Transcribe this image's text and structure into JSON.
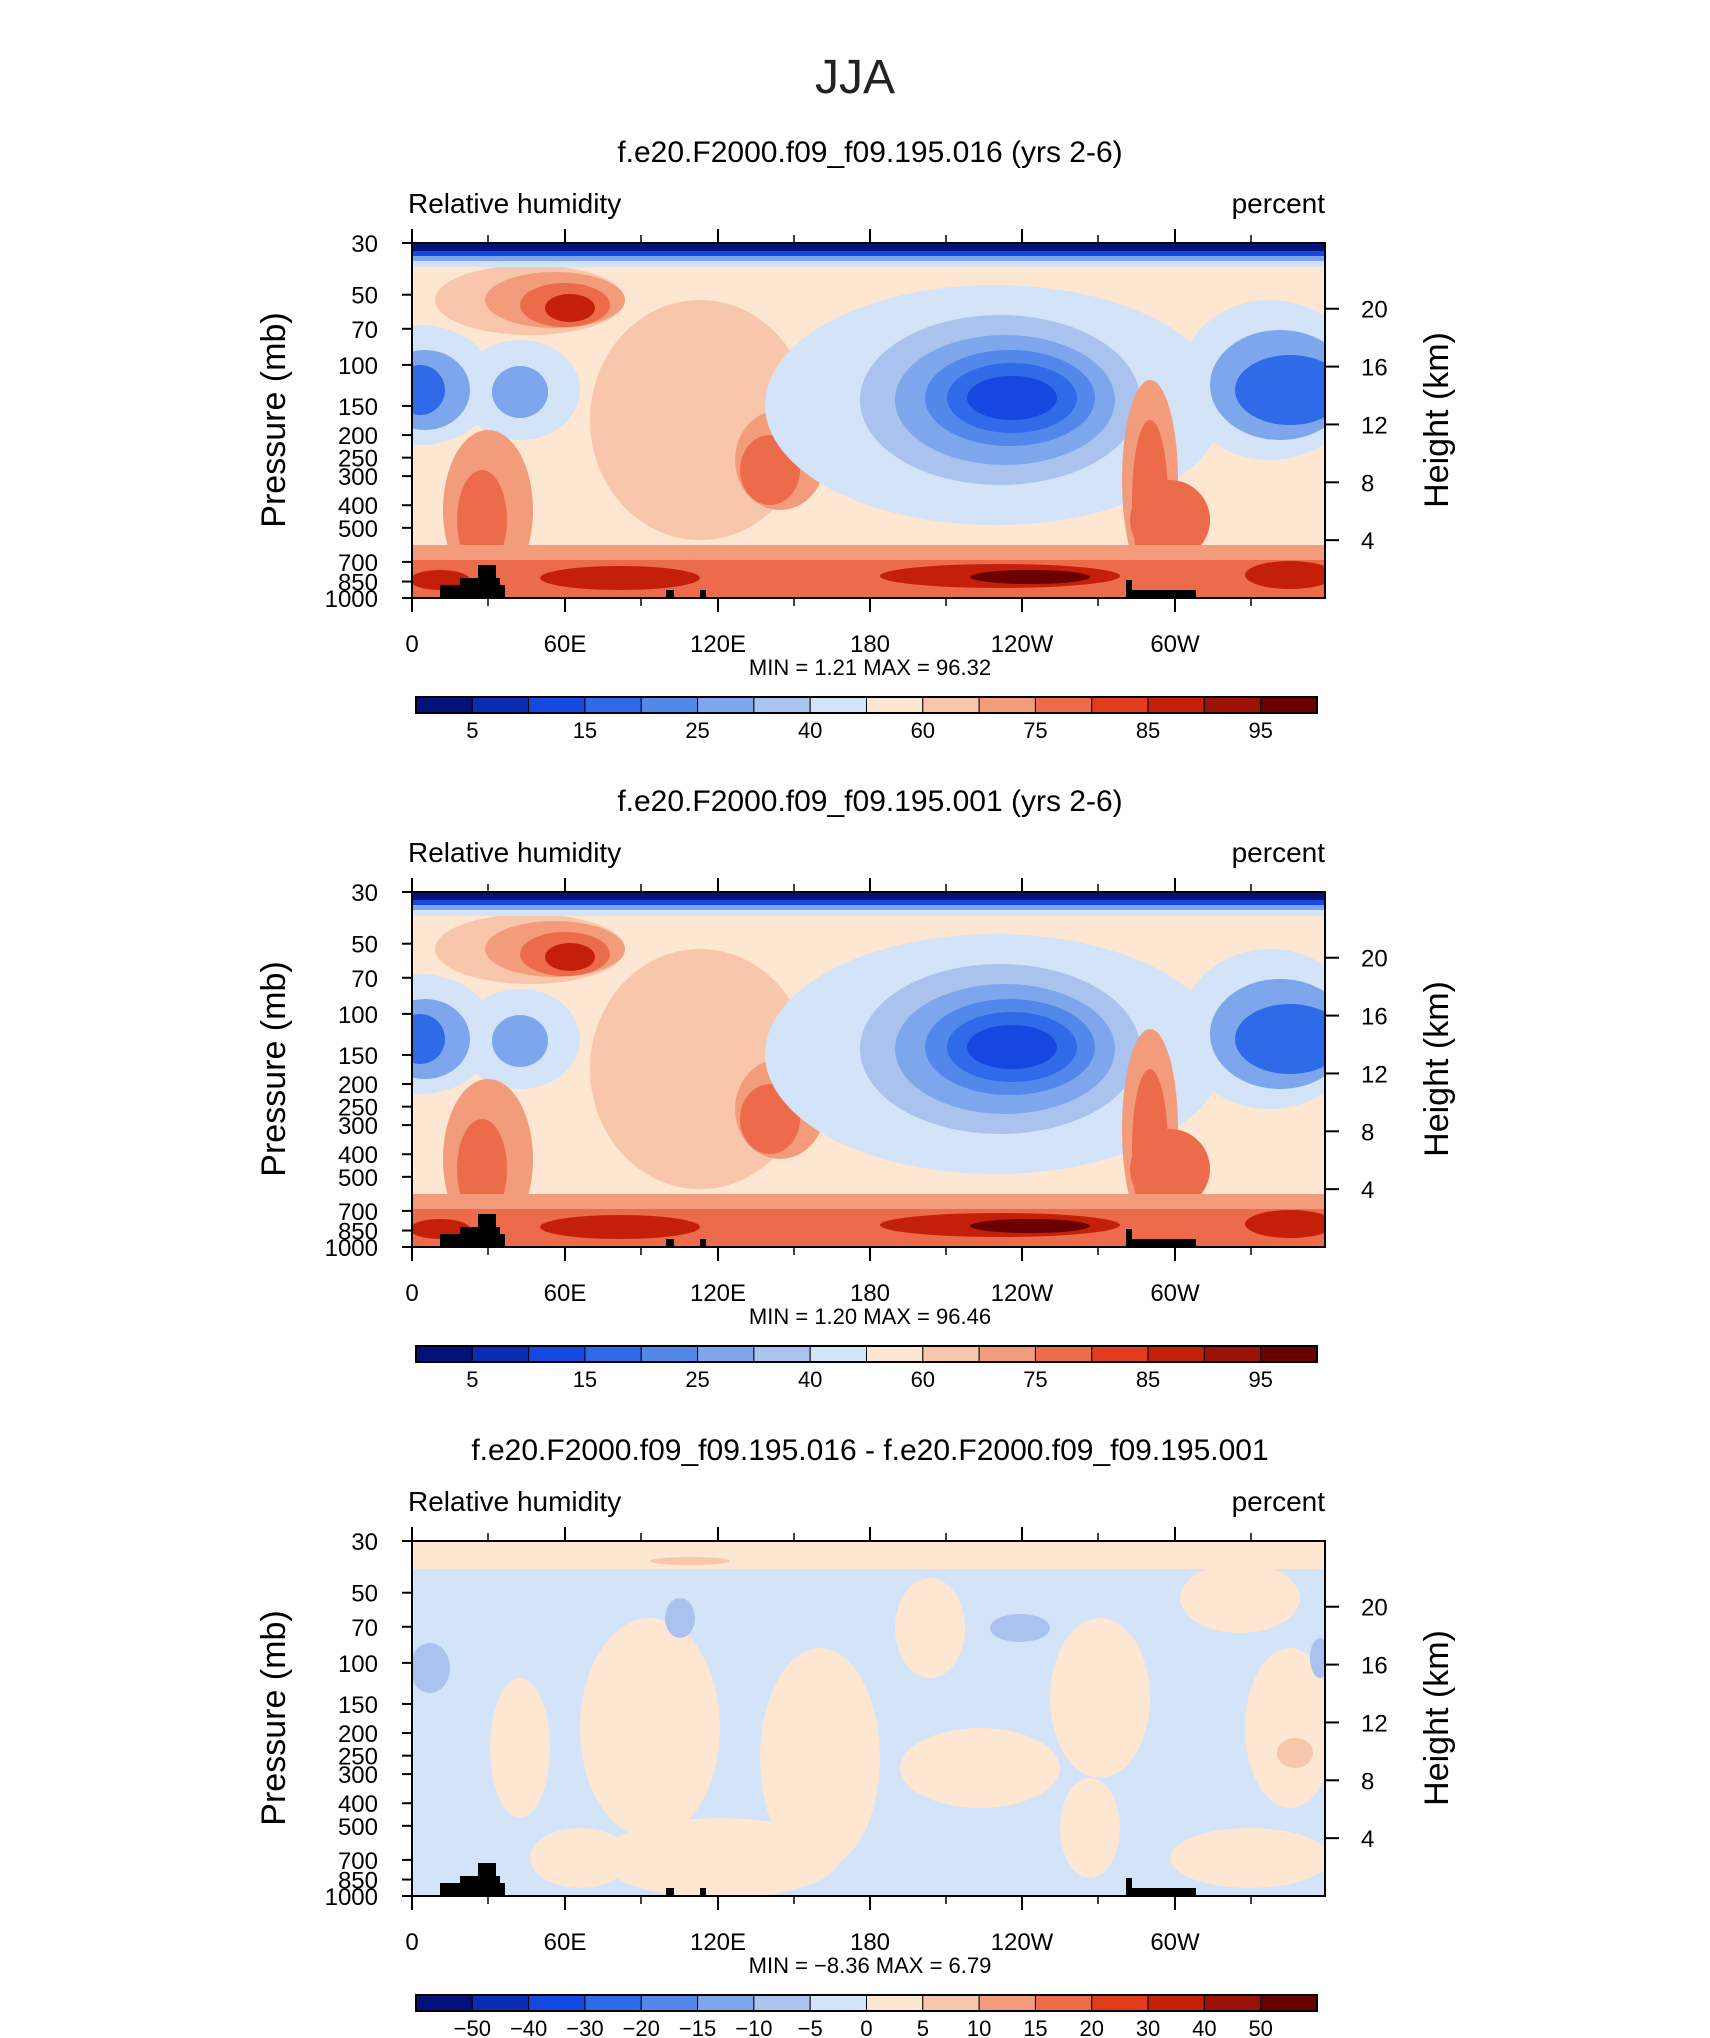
{
  "figure_title": "JJA",
  "colorbar_colors": [
    "#02127a",
    "#0a2db4",
    "#1448e0",
    "#2f6ae8",
    "#5288ea",
    "#7ea6ec",
    "#aac3ee",
    "#d3e3f8",
    "#fde6d2",
    "#f8c6aa",
    "#f39c7c",
    "#ec6b4a",
    "#e23c1c",
    "#c41f09",
    "#9c1206",
    "#6b0000"
  ],
  "panels_text": [
    {
      "title": "f.e20.F2000.f09_f09.195.016 (yrs 2-6)",
      "left_label": "Relative humidity",
      "right_label": "percent",
      "stats": "MIN =     1.21   MAX =    96.32"
    },
    {
      "title": "f.e20.F2000.f09_f09.195.001 (yrs 2-6)",
      "left_label": "Relative humidity",
      "right_label": "percent",
      "stats": "MIN =     1.20   MAX =    96.46"
    },
    {
      "title": "f.e20.F2000.f09_f09.195.016 - f.e20.F2000.f09_f09.195.001",
      "left_label": "Relative humidity",
      "right_label": "percent",
      "stats": "MIN =    −8.36   MAX =     6.79"
    }
  ],
  "chart_data": [
    {
      "type": "heatmap",
      "title": "f.e20.F2000.f09_f09.195.016 (yrs 2-6)",
      "variable": "Relative humidity",
      "units": "percent",
      "ylabel": "Pressure (mb)",
      "y2label": "Height (km)",
      "x_ticks": [
        "0",
        "60E",
        "120E",
        "180",
        "120W",
        "60W"
      ],
      "y_ticks": [
        "30",
        "50",
        "70",
        "100",
        "150",
        "200",
        "250",
        "300",
        "400",
        "500",
        "700",
        "850",
        "1000"
      ],
      "y2_ticks": [
        "20",
        "16",
        "12",
        "8",
        "4"
      ],
      "colorbar_labels": [
        "5",
        "15",
        "25",
        "40",
        "60",
        "75",
        "85",
        "95"
      ],
      "min": 1.21,
      "max": 96.32
    },
    {
      "type": "heatmap",
      "title": "f.e20.F2000.f09_f09.195.001 (yrs 2-6)",
      "variable": "Relative humidity",
      "units": "percent",
      "ylabel": "Pressure (mb)",
      "y2label": "Height (km)",
      "x_ticks": [
        "0",
        "60E",
        "120E",
        "180",
        "120W",
        "60W"
      ],
      "y_ticks": [
        "30",
        "50",
        "70",
        "100",
        "150",
        "200",
        "250",
        "300",
        "400",
        "500",
        "700",
        "850",
        "1000"
      ],
      "y2_ticks": [
        "20",
        "16",
        "12",
        "8",
        "4"
      ],
      "colorbar_labels": [
        "5",
        "15",
        "25",
        "40",
        "60",
        "75",
        "85",
        "95"
      ],
      "min": 1.2,
      "max": 96.46
    },
    {
      "type": "heatmap",
      "title": "f.e20.F2000.f09_f09.195.016 - f.e20.F2000.f09_f09.195.001",
      "variable": "Relative humidity",
      "units": "percent",
      "ylabel": "Pressure (mb)",
      "y2label": "Height (km)",
      "x_ticks": [
        "0",
        "60E",
        "120E",
        "180",
        "120W",
        "60W"
      ],
      "y_ticks": [
        "30",
        "50",
        "70",
        "100",
        "150",
        "200",
        "250",
        "300",
        "400",
        "500",
        "700",
        "850",
        "1000"
      ],
      "y2_ticks": [
        "20",
        "16",
        "12",
        "8",
        "4"
      ],
      "colorbar_labels": [
        "−50",
        "−40",
        "−30",
        "−20",
        "−15",
        "−10",
        "−5",
        "0",
        "5",
        "10",
        "15",
        "20",
        "30",
        "40",
        "50"
      ],
      "min": -8.36,
      "max": 6.79
    }
  ]
}
